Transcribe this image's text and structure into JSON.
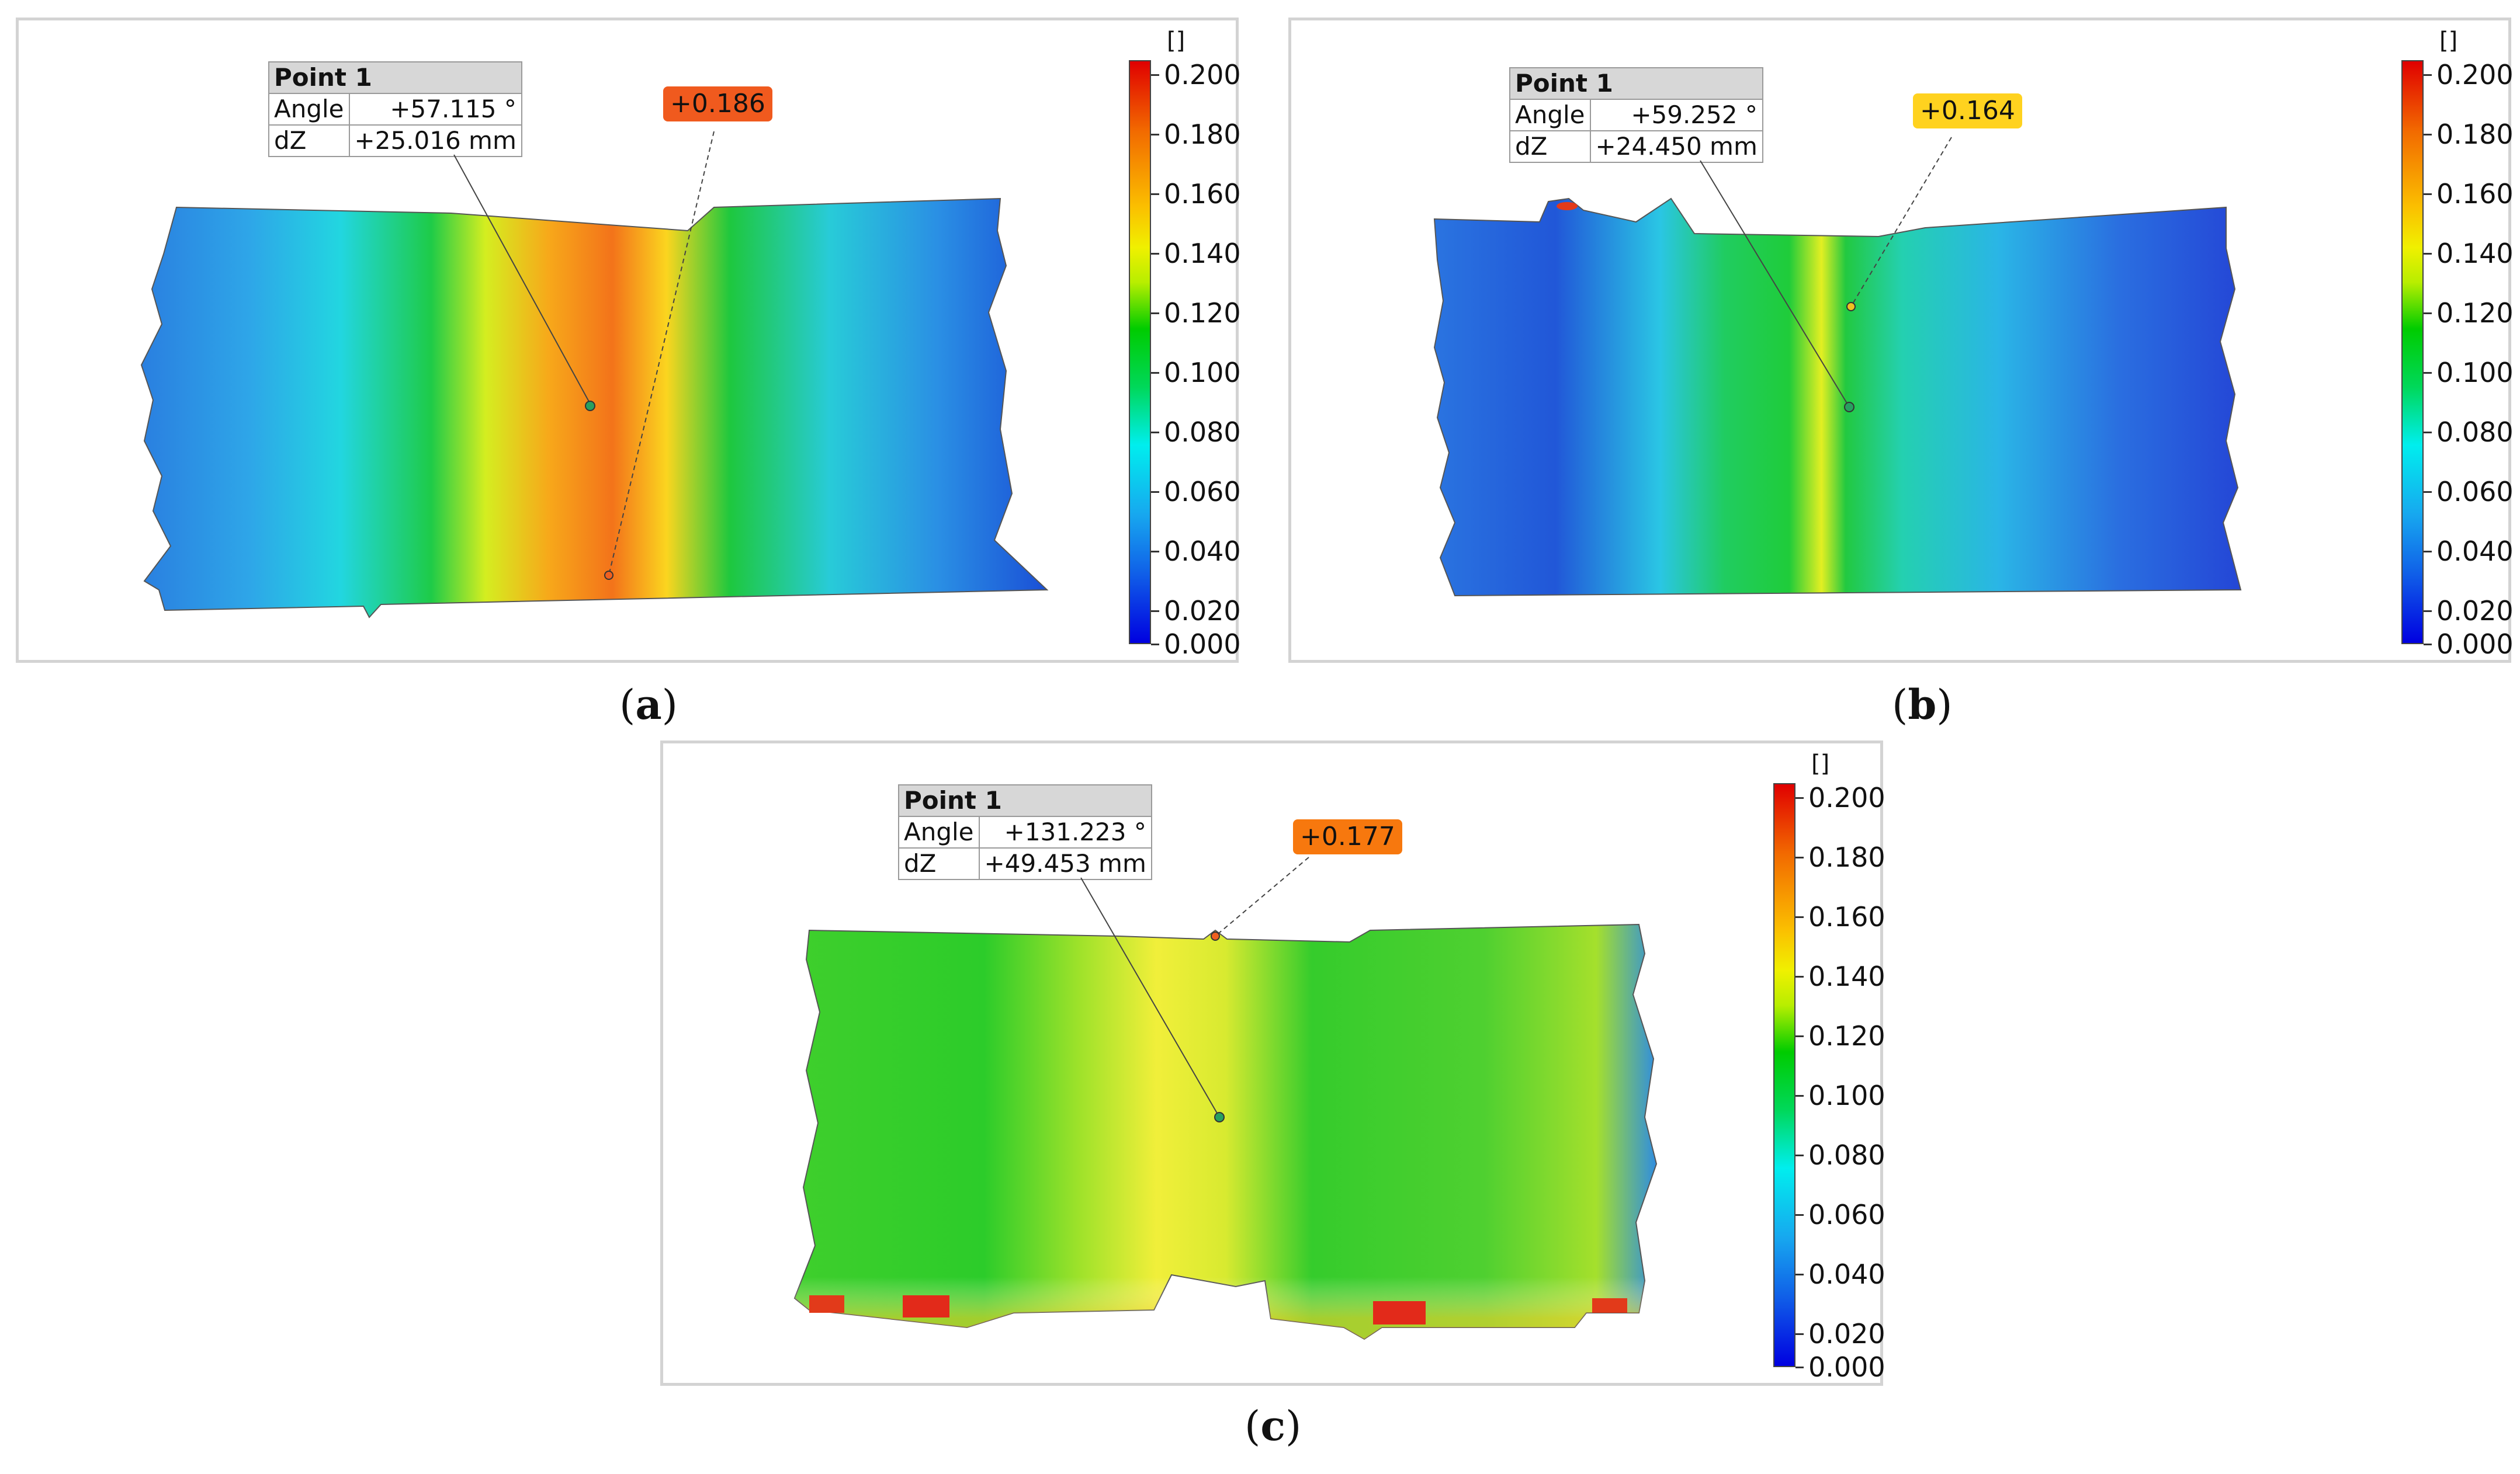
{
  "colorbar": {
    "unit": "[]",
    "ticks": [
      "0.200",
      "0.180",
      "0.160",
      "0.140",
      "0.120",
      "0.100",
      "0.080",
      "0.060",
      "0.040",
      "0.020",
      "0.000"
    ]
  },
  "panels": [
    {
      "id": "a",
      "caption": "a",
      "table": {
        "title": "Point 1",
        "rows": [
          {
            "label": "Angle",
            "value": "+57.115 °"
          },
          {
            "label": "dZ",
            "value": "+25.016 mm"
          }
        ]
      },
      "badge": {
        "value": "+0.186",
        "color": "#f05a1e"
      }
    },
    {
      "id": "b",
      "caption": "b",
      "table": {
        "title": "Point 1",
        "rows": [
          {
            "label": "Angle",
            "value": "+59.252 °"
          },
          {
            "label": "dZ",
            "value": "+24.450 mm"
          }
        ]
      },
      "badge": {
        "value": "+0.164",
        "color": "#ffd21f"
      }
    },
    {
      "id": "c",
      "caption": "c",
      "table": {
        "title": "Point 1",
        "rows": [
          {
            "label": "Angle",
            "value": "+131.223 °"
          },
          {
            "label": "dZ",
            "value": "+49.453 mm"
          }
        ]
      },
      "badge": {
        "value": "+0.177",
        "color": "#f7780e"
      }
    }
  ]
}
